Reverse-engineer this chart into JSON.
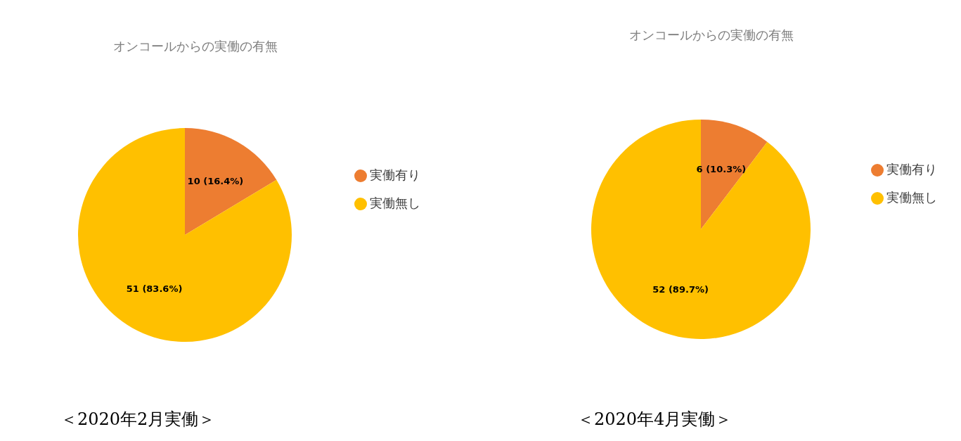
{
  "chart_data": [
    {
      "type": "pie",
      "title": "オンコールからの実働の有無",
      "categories": [
        "実働有り",
        "実働無し"
      ],
      "values": [
        10,
        51
      ],
      "colors": [
        "#ed7d31",
        "#ffc000"
      ],
      "value_labels": [
        "10 (16.4%)",
        "51 (83.6%)"
      ],
      "legend": "right",
      "annotations": [
        "＜2020年2月実働＞"
      ]
    },
    {
      "type": "pie",
      "title": "オンコールからの実働の有無",
      "categories": [
        "実働有り",
        "実働無し"
      ],
      "values": [
        6,
        52
      ],
      "colors": [
        "#ed7d31",
        "#ffc000"
      ],
      "value_labels": [
        "6 (10.3%)",
        "52 (89.7%)"
      ],
      "legend": "right",
      "annotations": [
        "＜2020年4月実働＞"
      ]
    }
  ]
}
